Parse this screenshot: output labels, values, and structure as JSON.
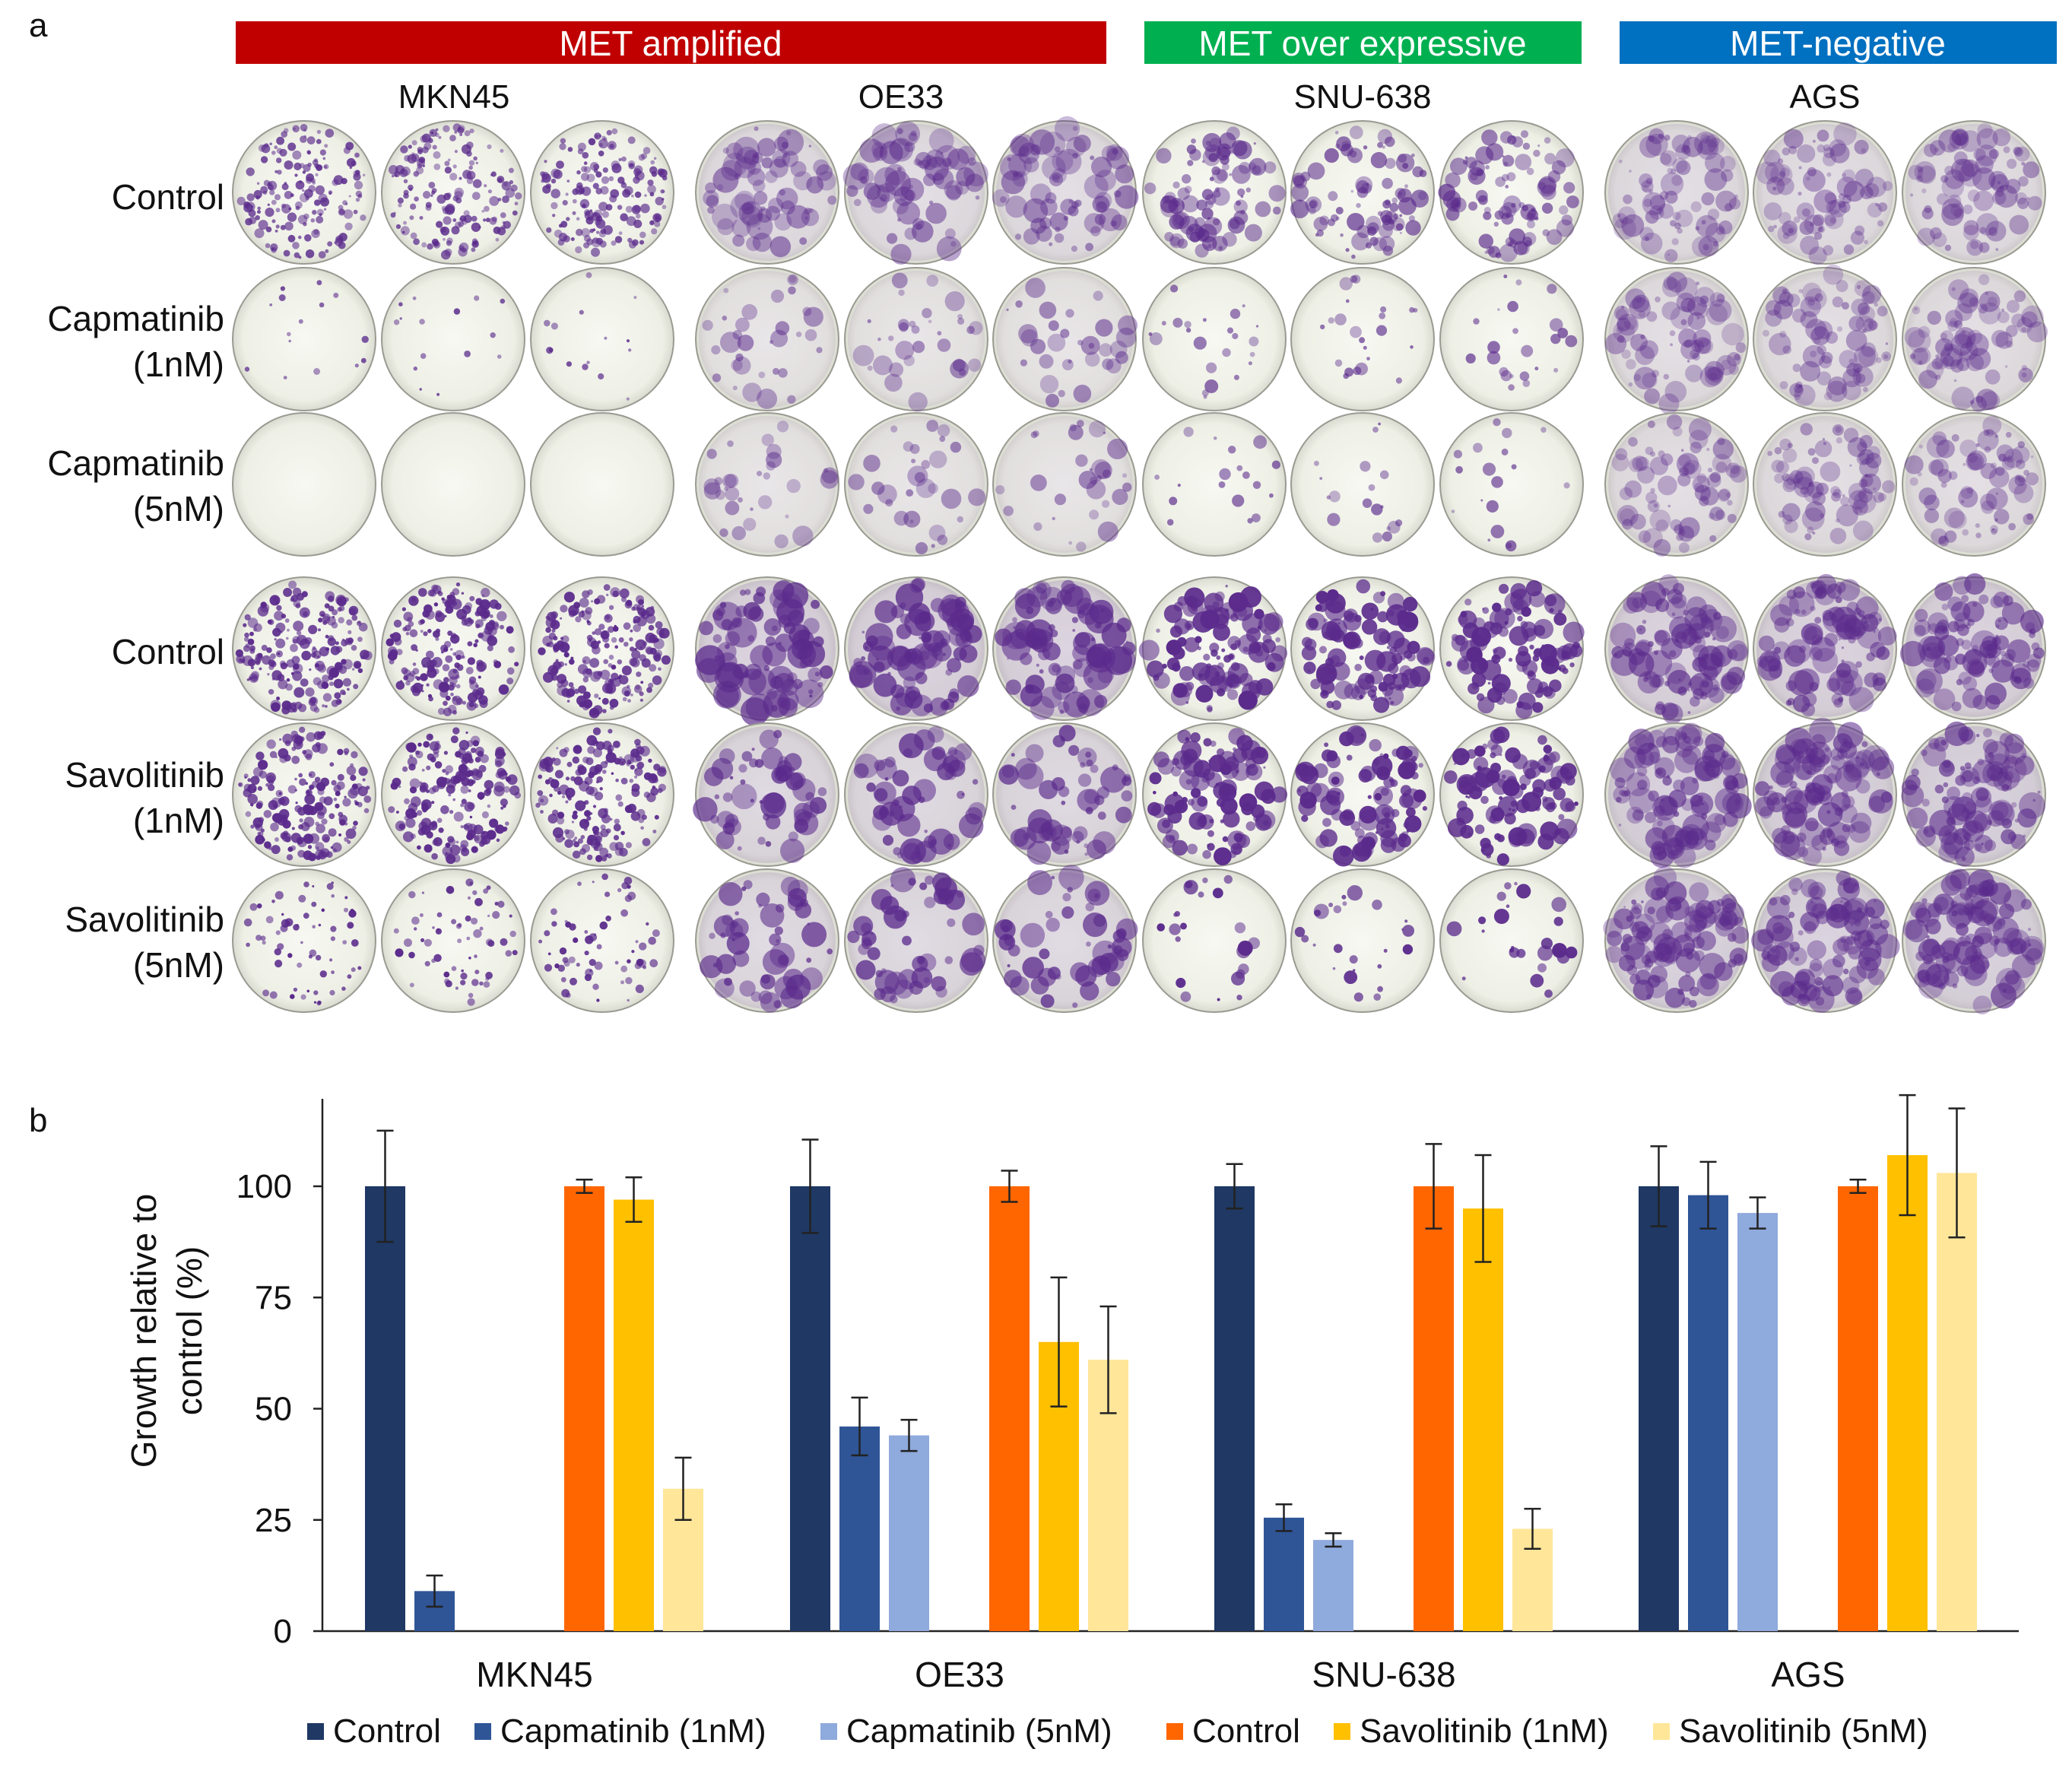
{
  "panel_a": {
    "label": "a",
    "groups": [
      {
        "label": "MET amplified",
        "color": "#C00000"
      },
      {
        "label": "MET over expressive",
        "color": "#00B050"
      },
      {
        "label": "MET-negative",
        "color": "#0070C0"
      }
    ],
    "cell_lines": [
      "MKN45",
      "OE33",
      "SNU-638",
      "AGS"
    ],
    "rows": [
      {
        "line1": "Control",
        "line2": ""
      },
      {
        "line1": "Capmatinib",
        "line2": "(1nM)"
      },
      {
        "line1": "Capmatinib",
        "line2": "(5nM)"
      },
      {
        "line1": "Control",
        "line2": ""
      },
      {
        "line1": "Savolitinib",
        "line2": "(1nM)"
      },
      {
        "line1": "Savolitinib",
        "line2": "(5nM)"
      }
    ],
    "stain_color": "#5B2B8C",
    "colony_density_relative_to_control": [
      [
        1.0,
        1.0,
        1.0,
        1.0
      ],
      [
        0.09,
        0.46,
        0.25,
        0.98
      ],
      [
        0.0,
        0.44,
        0.2,
        0.94
      ],
      [
        1.0,
        1.0,
        1.0,
        1.0
      ],
      [
        0.97,
        0.65,
        0.95,
        1.07
      ],
      [
        0.32,
        0.61,
        0.23,
        1.03
      ]
    ]
  },
  "panel_b": {
    "label": "b"
  },
  "chart_data": {
    "type": "bar",
    "title": "",
    "xlabel": "",
    "ylabel": "Growth relative to control (%)",
    "ylabel_lines": [
      "Growth relative to",
      "control (%)"
    ],
    "categories": [
      "MKN45",
      "OE33",
      "SNU-638",
      "AGS"
    ],
    "ylim": [
      0,
      120
    ],
    "yticks": [
      0,
      25,
      50,
      75,
      100
    ],
    "grid": false,
    "legend_position": "bottom",
    "series": [
      {
        "name": "Control",
        "color": "#1F3864",
        "values": [
          100,
          100,
          100,
          100
        ],
        "errors": [
          12.5,
          10.5,
          5,
          9
        ]
      },
      {
        "name": "Capmatinib (1nM)",
        "color": "#2F5597",
        "values": [
          9,
          46,
          25.5,
          98
        ],
        "errors": [
          3.5,
          6.5,
          3,
          7.5
        ]
      },
      {
        "name": "Capmatinib (5nM)",
        "color": "#8FAADC",
        "values": [
          null,
          44,
          20.5,
          94
        ],
        "errors": [
          null,
          3.5,
          1.5,
          3.5
        ]
      },
      {
        "name": "Control",
        "color": "#FF6600",
        "values": [
          100,
          100,
          100,
          100
        ],
        "errors": [
          1.5,
          3.5,
          9.5,
          1.5
        ]
      },
      {
        "name": "Savolitinib (1nM)",
        "color": "#FFC000",
        "values": [
          97,
          65,
          95,
          107
        ],
        "errors": [
          5,
          14.5,
          12,
          13.5
        ]
      },
      {
        "name": "Savolitinib (5nM)",
        "color": "#FFE699",
        "values": [
          32,
          61,
          23,
          103
        ],
        "errors": [
          7,
          12,
          4.5,
          14.5
        ]
      }
    ]
  }
}
